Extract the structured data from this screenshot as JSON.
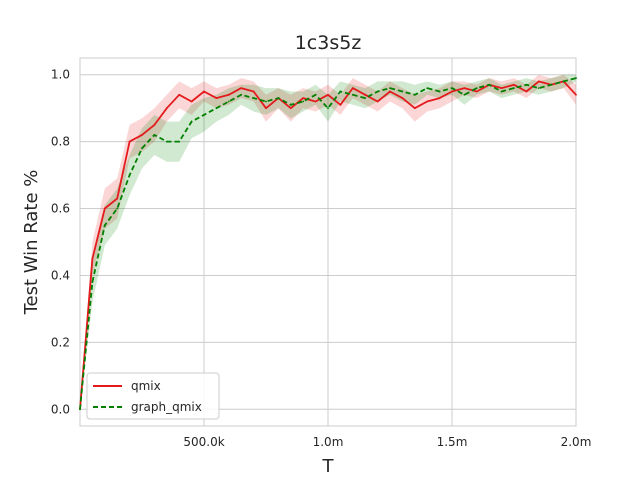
{
  "chart_data": {
    "type": "line",
    "title": "1c3s5z",
    "xlabel": "T",
    "ylabel": "Test Win Rate %",
    "xlim": [
      0,
      2000000
    ],
    "ylim": [
      -0.05,
      1.05
    ],
    "xticks": [
      500000,
      1000000,
      1500000,
      2000000
    ],
    "xtick_labels": [
      "500.0k",
      "1.0m",
      "1.5m",
      "2.0m"
    ],
    "yticks": [
      0.0,
      0.2,
      0.4,
      0.6,
      0.8,
      1.0
    ],
    "ytick_labels": [
      "0.0",
      "0.2",
      "0.4",
      "0.6",
      "0.8",
      "1.0"
    ],
    "grid": true,
    "legend_position": "lower-left",
    "x": [
      0,
      50000,
      100000,
      150000,
      200000,
      250000,
      300000,
      350000,
      400000,
      450000,
      500000,
      550000,
      600000,
      650000,
      700000,
      750000,
      800000,
      850000,
      900000,
      950000,
      1000000,
      1050000,
      1100000,
      1150000,
      1200000,
      1250000,
      1300000,
      1350000,
      1400000,
      1450000,
      1500000,
      1550000,
      1600000,
      1650000,
      1700000,
      1750000,
      1800000,
      1850000,
      1900000,
      1950000,
      2000000
    ],
    "series": [
      {
        "name": "qmix",
        "color": "#e41a1c",
        "style": "solid",
        "values": [
          0.0,
          0.45,
          0.6,
          0.63,
          0.8,
          0.82,
          0.85,
          0.9,
          0.94,
          0.92,
          0.95,
          0.93,
          0.94,
          0.96,
          0.95,
          0.9,
          0.93,
          0.9,
          0.93,
          0.92,
          0.94,
          0.91,
          0.96,
          0.94,
          0.92,
          0.95,
          0.93,
          0.9,
          0.92,
          0.93,
          0.95,
          0.96,
          0.95,
          0.97,
          0.96,
          0.97,
          0.95,
          0.98,
          0.97,
          0.98,
          0.94
        ],
        "band": [
          0.0,
          0.05,
          0.06,
          0.06,
          0.05,
          0.05,
          0.05,
          0.04,
          0.04,
          0.04,
          0.03,
          0.03,
          0.03,
          0.03,
          0.03,
          0.04,
          0.03,
          0.04,
          0.03,
          0.03,
          0.03,
          0.03,
          0.03,
          0.03,
          0.03,
          0.03,
          0.03,
          0.04,
          0.03,
          0.03,
          0.03,
          0.02,
          0.02,
          0.02,
          0.02,
          0.02,
          0.02,
          0.02,
          0.02,
          0.02,
          0.03
        ]
      },
      {
        "name": "graph_qmix",
        "color": "#008000",
        "style": "dashed",
        "values": [
          0.0,
          0.38,
          0.55,
          0.6,
          0.7,
          0.78,
          0.82,
          0.8,
          0.8,
          0.86,
          0.88,
          0.9,
          0.92,
          0.94,
          0.93,
          0.92,
          0.93,
          0.91,
          0.92,
          0.94,
          0.9,
          0.95,
          0.94,
          0.93,
          0.95,
          0.96,
          0.95,
          0.94,
          0.96,
          0.95,
          0.96,
          0.94,
          0.96,
          0.97,
          0.95,
          0.96,
          0.97,
          0.96,
          0.97,
          0.98,
          0.99
        ],
        "band": [
          0.0,
          0.06,
          0.06,
          0.06,
          0.06,
          0.06,
          0.06,
          0.06,
          0.06,
          0.05,
          0.05,
          0.04,
          0.04,
          0.03,
          0.04,
          0.04,
          0.03,
          0.04,
          0.03,
          0.03,
          0.04,
          0.03,
          0.03,
          0.03,
          0.03,
          0.02,
          0.03,
          0.03,
          0.02,
          0.02,
          0.02,
          0.03,
          0.02,
          0.02,
          0.02,
          0.02,
          0.02,
          0.02,
          0.02,
          0.02,
          0.01
        ]
      }
    ]
  }
}
